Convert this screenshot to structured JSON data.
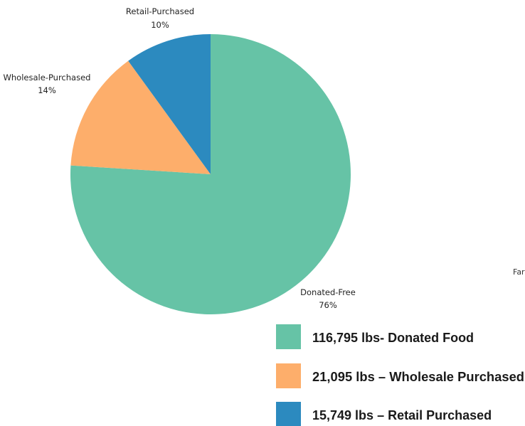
{
  "chart_data": {
    "type": "pie",
    "slices": [
      {
        "label": "Donated-Free",
        "pct_label": "76%",
        "value": 76,
        "color": "#66c3a6"
      },
      {
        "label": "Wholesale-Purchased",
        "pct_label": "14%",
        "value": 14,
        "color": "#fdae6b"
      },
      {
        "label": "Retail-Purchased",
        "pct_label": "10%",
        "value": 10,
        "color": "#2c8abf"
      }
    ],
    "start_angle_deg": 0,
    "direction": "clockwise",
    "legend": {
      "placement": "bottom-right",
      "items": [
        {
          "text": "116,795 lbs- Donated Food",
          "color": "#66c3a6"
        },
        {
          "text": "21,095 lbs – Wholesale Purchased",
          "color": "#fdae6b"
        },
        {
          "text": "15,749 lbs – Retail Purchased",
          "color": "#2c8abf"
        }
      ]
    },
    "edge_text": "Far"
  }
}
